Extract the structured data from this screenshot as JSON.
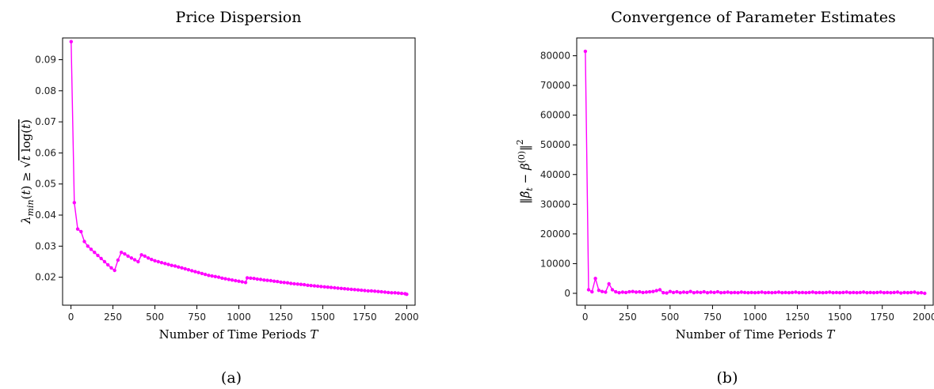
{
  "chart_data": [
    {
      "type": "line",
      "title": "Price Dispersion",
      "xlabel": "Number of Time Periods T",
      "ylabel": "λmin(t) ≥ √(t log(t))",
      "caption": "(a)",
      "xlim": [
        -50,
        2050
      ],
      "ylim": [
        0.011,
        0.097
      ],
      "xticks": [
        0,
        250,
        500,
        750,
        1000,
        1250,
        1500,
        1750,
        2000
      ],
      "xtick_labels": [
        "0",
        "250",
        "500",
        "750",
        "1000",
        "1250",
        "1500",
        "1750",
        "2000"
      ],
      "yticks": [
        0.02,
        0.03,
        0.04,
        0.05,
        0.06,
        0.07,
        0.08,
        0.09
      ],
      "ytick_labels": [
        "0.02",
        "0.03",
        "0.04",
        "0.05",
        "0.06",
        "0.07",
        "0.08",
        "0.09"
      ],
      "color": "#ff00ff",
      "series": [
        {
          "x": [
            1,
            20,
            40,
            60,
            80,
            100,
            120,
            140,
            160,
            180,
            200,
            220,
            240,
            260,
            280,
            300,
            320,
            340,
            360,
            380,
            400,
            420,
            440,
            460,
            480,
            500,
            520,
            540,
            560,
            580,
            600,
            620,
            640,
            660,
            680,
            700,
            720,
            740,
            760,
            780,
            800,
            820,
            840,
            860,
            880,
            900,
            920,
            940,
            960,
            980,
            1000,
            1020,
            1040,
            1050,
            1070,
            1090,
            1110,
            1130,
            1150,
            1170,
            1190,
            1210,
            1230,
            1250,
            1270,
            1290,
            1310,
            1330,
            1350,
            1370,
            1390,
            1410,
            1430,
            1450,
            1470,
            1490,
            1510,
            1530,
            1550,
            1570,
            1590,
            1610,
            1630,
            1650,
            1670,
            1690,
            1710,
            1730,
            1750,
            1770,
            1790,
            1810,
            1830,
            1850,
            1870,
            1890,
            1910,
            1930,
            1950,
            1970,
            1990,
            2000
          ],
          "y": [
            0.0958,
            0.044,
            0.0355,
            0.0347,
            0.0315,
            0.03,
            0.029,
            0.028,
            0.027,
            0.026,
            0.025,
            0.024,
            0.023,
            0.0222,
            0.0255,
            0.028,
            0.0275,
            0.0268,
            0.0262,
            0.0256,
            0.025,
            0.0272,
            0.0268,
            0.0262,
            0.0257,
            0.0253,
            0.025,
            0.0247,
            0.0244,
            0.0241,
            0.0238,
            0.0236,
            0.0233,
            0.023,
            0.0227,
            0.0224,
            0.0221,
            0.0218,
            0.0215,
            0.0212,
            0.0209,
            0.0206,
            0.0204,
            0.0202,
            0.02,
            0.0197,
            0.0195,
            0.0193,
            0.0191,
            0.0189,
            0.0187,
            0.0185,
            0.0183,
            0.0198,
            0.0197,
            0.0196,
            0.0194,
            0.0193,
            0.0191,
            0.019,
            0.0189,
            0.0187,
            0.0186,
            0.0184,
            0.0183,
            0.0182,
            0.018,
            0.0179,
            0.0178,
            0.0177,
            0.0176,
            0.0174,
            0.0173,
            0.0172,
            0.0171,
            0.017,
            0.0169,
            0.0168,
            0.0167,
            0.0166,
            0.0165,
            0.0164,
            0.0163,
            0.0162,
            0.0161,
            0.016,
            0.0159,
            0.0158,
            0.0157,
            0.0156,
            0.0156,
            0.0155,
            0.0154,
            0.0153,
            0.0152,
            0.0151,
            0.015,
            0.015,
            0.0149,
            0.0148,
            0.0147,
            0.0145
          ]
        }
      ]
    },
    {
      "type": "line",
      "title": "Convergence of Parameter Estimates",
      "xlabel": "Number of Time Periods T",
      "ylabel": "‖β̂t − β(0)‖²",
      "caption": "(b)",
      "xlim": [
        -50,
        2050
      ],
      "ylim": [
        -4000,
        86000
      ],
      "xticks": [
        0,
        250,
        500,
        750,
        1000,
        1250,
        1500,
        1750,
        2000
      ],
      "xtick_labels": [
        "0",
        "250",
        "500",
        "750",
        "1000",
        "1250",
        "1500",
        "1750",
        "2000"
      ],
      "yticks": [
        0,
        10000,
        20000,
        30000,
        40000,
        50000,
        60000,
        70000,
        80000
      ],
      "ytick_labels": [
        "0",
        "10000",
        "20000",
        "30000",
        "40000",
        "50000",
        "60000",
        "70000",
        "80000"
      ],
      "color": "#ff00ff",
      "series": [
        {
          "x": [
            1,
            20,
            40,
            60,
            80,
            100,
            120,
            140,
            160,
            180,
            200,
            220,
            240,
            260,
            280,
            300,
            320,
            340,
            360,
            380,
            400,
            420,
            440,
            460,
            480,
            500,
            520,
            540,
            560,
            580,
            600,
            620,
            640,
            660,
            680,
            700,
            720,
            740,
            760,
            780,
            800,
            820,
            840,
            860,
            880,
            900,
            920,
            940,
            960,
            980,
            1000,
            1020,
            1040,
            1060,
            1080,
            1100,
            1120,
            1140,
            1160,
            1180,
            1200,
            1220,
            1240,
            1260,
            1280,
            1300,
            1320,
            1340,
            1360,
            1380,
            1400,
            1420,
            1440,
            1460,
            1480,
            1500,
            1520,
            1540,
            1560,
            1580,
            1600,
            1620,
            1640,
            1660,
            1680,
            1700,
            1720,
            1740,
            1760,
            1780,
            1800,
            1820,
            1840,
            1860,
            1880,
            1900,
            1920,
            1940,
            1960,
            1980,
            2000
          ],
          "y": [
            81500,
            1200,
            500,
            5000,
            1000,
            600,
            400,
            3200,
            1200,
            500,
            200,
            400,
            300,
            500,
            600,
            400,
            500,
            300,
            400,
            500,
            600,
            900,
            1200,
            200,
            100,
            600,
            300,
            500,
            200,
            400,
            300,
            600,
            200,
            400,
            300,
            500,
            200,
            400,
            300,
            500,
            200,
            300,
            400,
            200,
            300,
            200,
            400,
            300,
            200,
            300,
            200,
            300,
            400,
            200,
            300,
            200,
            300,
            400,
            200,
            300,
            200,
            300,
            400,
            200,
            300,
            200,
            300,
            400,
            200,
            300,
            200,
            300,
            400,
            200,
            300,
            200,
            300,
            400,
            200,
            300,
            200,
            300,
            400,
            200,
            300,
            200,
            300,
            400,
            200,
            300,
            200,
            300,
            400,
            100,
            300,
            200,
            300,
            400,
            100,
            200,
            0
          ]
        }
      ]
    }
  ]
}
